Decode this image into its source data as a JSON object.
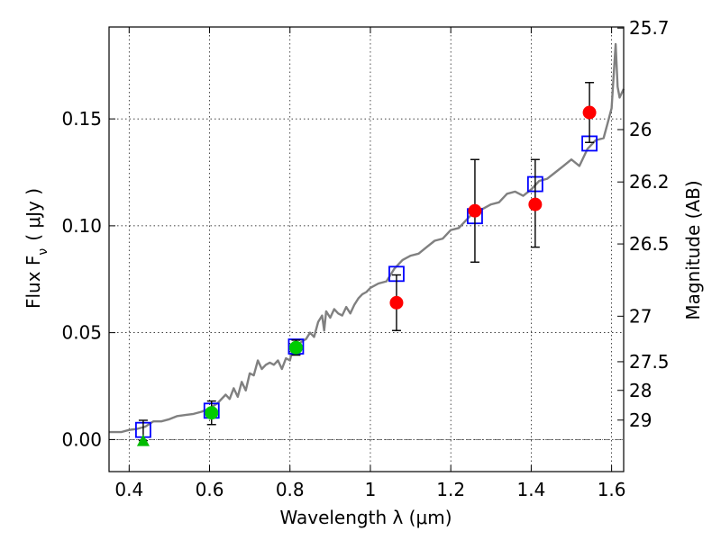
{
  "chart_data": {
    "type": "scatter",
    "xlabel": "Wavelength  λ (μm)",
    "ylabel": "Flux  F",
    "ylabel_sub": "ν",
    "ylabel_unit": "( μJy )",
    "y2label": "Magnitude (AB)",
    "xlim": [
      0.35,
      1.63
    ],
    "ylim": [
      -0.015,
      0.193
    ],
    "grid": true,
    "x_ticks": [
      0.4,
      0.6,
      0.8,
      1.0,
      1.2,
      1.4,
      1.6
    ],
    "x_tick_labels": [
      "0.4",
      "0.6",
      "0.8",
      "1",
      "1.2",
      "1.4",
      "1.6"
    ],
    "y_ticks": [
      0.0,
      0.05,
      0.1,
      0.15
    ],
    "y_tick_labels": [
      "0.00",
      "0.05",
      "0.10",
      "0.15"
    ],
    "right_axis_ticks": [
      {
        "label": "25.7",
        "flux": 0.1925
      },
      {
        "label": "26",
        "flux": 0.145
      },
      {
        "label": "26.2",
        "flux": 0.1205
      },
      {
        "label": "26.5",
        "flux": 0.0915
      },
      {
        "label": "27",
        "flux": 0.0577
      },
      {
        "label": "27.5",
        "flux": 0.0364
      },
      {
        "label": "28",
        "flux": 0.023
      },
      {
        "label": "29",
        "flux": 0.0091
      }
    ],
    "series": [
      {
        "marker": "line",
        "color": "#808080",
        "points": [
          [
            0.35,
            0.0035
          ],
          [
            0.38,
            0.0035
          ],
          [
            0.4,
            0.0045
          ],
          [
            0.42,
            0.005
          ],
          [
            0.44,
            0.006
          ],
          [
            0.46,
            0.0085
          ],
          [
            0.48,
            0.0085
          ],
          [
            0.5,
            0.0095
          ],
          [
            0.52,
            0.011
          ],
          [
            0.54,
            0.0115
          ],
          [
            0.56,
            0.012
          ],
          [
            0.58,
            0.013
          ],
          [
            0.6,
            0.0145
          ],
          [
            0.62,
            0.017
          ],
          [
            0.64,
            0.021
          ],
          [
            0.65,
            0.019
          ],
          [
            0.66,
            0.024
          ],
          [
            0.67,
            0.02
          ],
          [
            0.68,
            0.027
          ],
          [
            0.69,
            0.023
          ],
          [
            0.7,
            0.031
          ],
          [
            0.71,
            0.03
          ],
          [
            0.72,
            0.037
          ],
          [
            0.73,
            0.033
          ],
          [
            0.74,
            0.035
          ],
          [
            0.75,
            0.036
          ],
          [
            0.76,
            0.035
          ],
          [
            0.77,
            0.037
          ],
          [
            0.78,
            0.033
          ],
          [
            0.79,
            0.038
          ],
          [
            0.8,
            0.037
          ],
          [
            0.81,
            0.045
          ],
          [
            0.82,
            0.044
          ],
          [
            0.83,
            0.046
          ],
          [
            0.84,
            0.047
          ],
          [
            0.85,
            0.05
          ],
          [
            0.86,
            0.048
          ],
          [
            0.87,
            0.055
          ],
          [
            0.88,
            0.058
          ],
          [
            0.885,
            0.051
          ],
          [
            0.89,
            0.06
          ],
          [
            0.9,
            0.057
          ],
          [
            0.91,
            0.061
          ],
          [
            0.92,
            0.059
          ],
          [
            0.93,
            0.058
          ],
          [
            0.94,
            0.062
          ],
          [
            0.95,
            0.059
          ],
          [
            0.96,
            0.063
          ],
          [
            0.97,
            0.066
          ],
          [
            0.98,
            0.068
          ],
          [
            0.99,
            0.069
          ],
          [
            1.0,
            0.071
          ],
          [
            1.02,
            0.073
          ],
          [
            1.04,
            0.074
          ],
          [
            1.06,
            0.08
          ],
          [
            1.08,
            0.084
          ],
          [
            1.1,
            0.086
          ],
          [
            1.12,
            0.087
          ],
          [
            1.14,
            0.09
          ],
          [
            1.16,
            0.093
          ],
          [
            1.18,
            0.094
          ],
          [
            1.2,
            0.098
          ],
          [
            1.22,
            0.099
          ],
          [
            1.24,
            0.103
          ],
          [
            1.26,
            0.107
          ],
          [
            1.28,
            0.108
          ],
          [
            1.3,
            0.11
          ],
          [
            1.32,
            0.111
          ],
          [
            1.34,
            0.115
          ],
          [
            1.36,
            0.116
          ],
          [
            1.38,
            0.114
          ],
          [
            1.4,
            0.117
          ],
          [
            1.42,
            0.121
          ],
          [
            1.44,
            0.122
          ],
          [
            1.46,
            0.125
          ],
          [
            1.48,
            0.128
          ],
          [
            1.5,
            0.131
          ],
          [
            1.52,
            0.128
          ],
          [
            1.54,
            0.136
          ],
          [
            1.56,
            0.14
          ],
          [
            1.58,
            0.141
          ],
          [
            1.59,
            0.148
          ],
          [
            1.6,
            0.155
          ],
          [
            1.61,
            0.185
          ],
          [
            1.615,
            0.165
          ],
          [
            1.62,
            0.16
          ],
          [
            1.63,
            0.164
          ]
        ]
      },
      {
        "marker": "square",
        "color": "#0000ff",
        "points": [
          [
            0.435,
            0.0045
          ],
          [
            0.605,
            0.0135
          ],
          [
            0.815,
            0.0435
          ],
          [
            1.065,
            0.0775
          ],
          [
            1.26,
            0.1045
          ],
          [
            1.41,
            0.1195
          ],
          [
            1.545,
            0.1385
          ]
        ]
      },
      {
        "marker": "circle",
        "color": "#ff0000",
        "points": [
          [
            1.065,
            0.064
          ],
          [
            1.26,
            0.107
          ],
          [
            1.41,
            0.11
          ],
          [
            1.545,
            0.153
          ]
        ],
        "errors": [
          [
            0.013,
            0.013
          ],
          [
            0.024,
            0.024
          ],
          [
            0.02,
            0.021
          ],
          [
            0.014,
            0.014
          ]
        ]
      },
      {
        "marker": "circle",
        "color": "#00cc00",
        "points": [
          [
            0.605,
            0.0125
          ],
          [
            0.815,
            0.043
          ]
        ],
        "errors": [
          [
            0.0055,
            0.0055
          ],
          [
            0.0035,
            0.0035
          ]
        ]
      },
      {
        "marker": "triangle",
        "color": "#00bb00",
        "points": [
          [
            0.435,
            -0.0005
          ]
        ],
        "errors": [
          [
            0,
            0.0095
          ]
        ]
      }
    ]
  }
}
